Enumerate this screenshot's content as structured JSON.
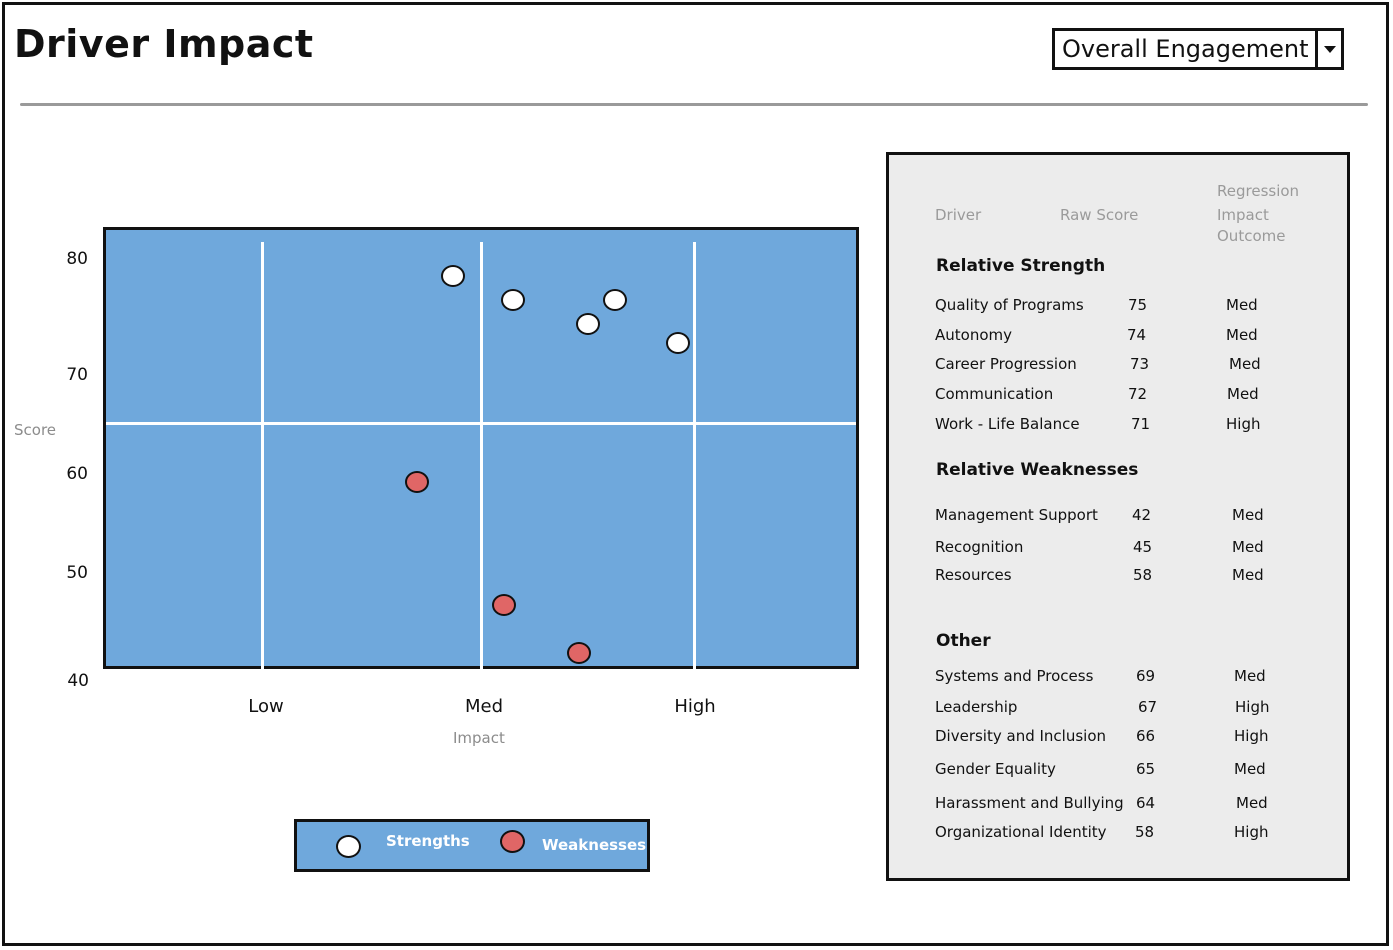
{
  "header": {
    "title": "Driver Impact",
    "selector_value": "Overall Engagement"
  },
  "chart_data": {
    "type": "scatter",
    "xlabel": "Impact",
    "ylabel": "Score",
    "x_categories": [
      "Low",
      "Med",
      "High"
    ],
    "y_ticks": [
      80,
      70,
      60,
      50,
      40
    ],
    "ylim": [
      40,
      82
    ],
    "colors": {
      "plot_background": "#6fa8dc",
      "strengths": "#ffffff",
      "weaknesses": "#e06666"
    },
    "series": [
      {
        "name": "Strengths",
        "points": [
          {
            "impact": "Low-Med",
            "score": 78
          },
          {
            "impact": "Med",
            "score": 76
          },
          {
            "impact": "Med-High",
            "score": 75
          },
          {
            "impact": "Med-High",
            "score": 76
          },
          {
            "impact": "High",
            "score": 73
          }
        ]
      },
      {
        "name": "Weaknesses",
        "points": [
          {
            "impact": "Low-Med",
            "score": 60
          },
          {
            "impact": "Med",
            "score": 47
          },
          {
            "impact": "Med-High",
            "score": 42
          }
        ]
      }
    ]
  },
  "legend": {
    "strengths_label": "Strengths",
    "weaknesses_label": "Weaknesses"
  },
  "panel": {
    "headers": {
      "driver": "Driver",
      "raw_score": "Raw Score",
      "regression_1": "Regression",
      "regression_2": "Impact",
      "regression_3": "Outcome"
    },
    "sections": [
      {
        "title": "Relative Strength",
        "rows": [
          {
            "driver": "Quality of Programs",
            "score": "75",
            "impact": "Med"
          },
          {
            "driver": "Autonomy",
            "score": "74",
            "impact": "Med"
          },
          {
            "driver": "Career Progression",
            "score": "73",
            "impact": "Med"
          },
          {
            "driver": "Communication",
            "score": "72",
            "impact": "Med"
          },
          {
            "driver": "Work - Life Balance",
            "score": "71",
            "impact": "High"
          }
        ]
      },
      {
        "title": "Relative Weaknesses",
        "rows": [
          {
            "driver": "Management Support",
            "score": "42",
            "impact": "Med"
          },
          {
            "driver": "Recognition",
            "score": "45",
            "impact": "Med"
          },
          {
            "driver": "Resources",
            "score": "58",
            "impact": "Med"
          }
        ]
      },
      {
        "title": "Other",
        "rows": [
          {
            "driver": "Systems and Process",
            "score": "69",
            "impact": "Med"
          },
          {
            "driver": "Leadership",
            "score": "67",
            "impact": "High"
          },
          {
            "driver": "Diversity and Inclusion",
            "score": "66",
            "impact": "High"
          },
          {
            "driver": "Gender Equality",
            "score": "65",
            "impact": "Med"
          },
          {
            "driver": "Harassment and Bullying",
            "score": "64",
            "impact": "Med"
          },
          {
            "driver": "Organizational Identity",
            "score": "58",
            "impact": "High"
          }
        ]
      }
    ]
  }
}
